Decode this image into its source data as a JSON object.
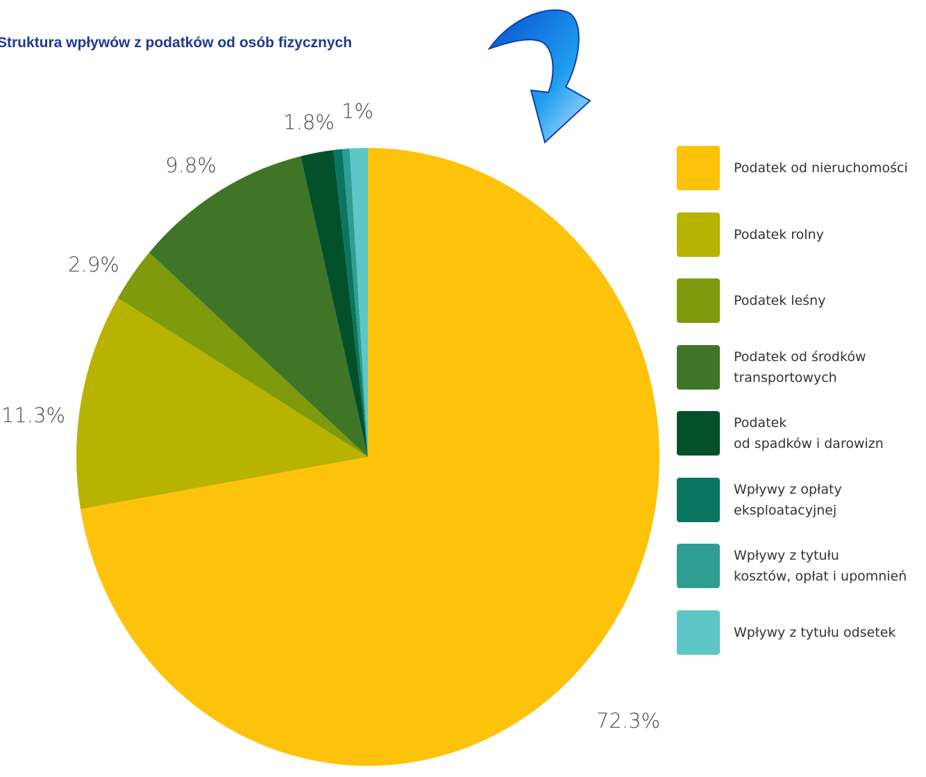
{
  "chart_data": {
    "type": "pie",
    "title": "Struktura wpływów z podatków od osób fizycznych",
    "categories": [
      "Podatek od nieruchomości",
      "Podatek rolny",
      "Podatek leśny",
      "Podatek od środków\ntransportowych",
      "Podatek\nod spadków i darowizn",
      "Wpływy z opłaty\neksploatacyjnej",
      "Wpływy z tytułu\nkosztów, opłat i upomnień",
      "Wpływy z tytułu odsetek"
    ],
    "values": [
      72.3,
      11.3,
      2.9,
      9.8,
      1.8,
      0.5,
      0.4,
      1
    ],
    "value_labels": [
      "72.3%",
      "11.3%",
      "2.9%",
      "9.8%",
      "1.8%",
      null,
      null,
      "1%"
    ],
    "colors": [
      "#fdc30a",
      "#b8b200",
      "#7f9a0c",
      "#3f7526",
      "#03502a",
      "#0a7560",
      "#2e9e93",
      "#5ec6c6"
    ]
  }
}
